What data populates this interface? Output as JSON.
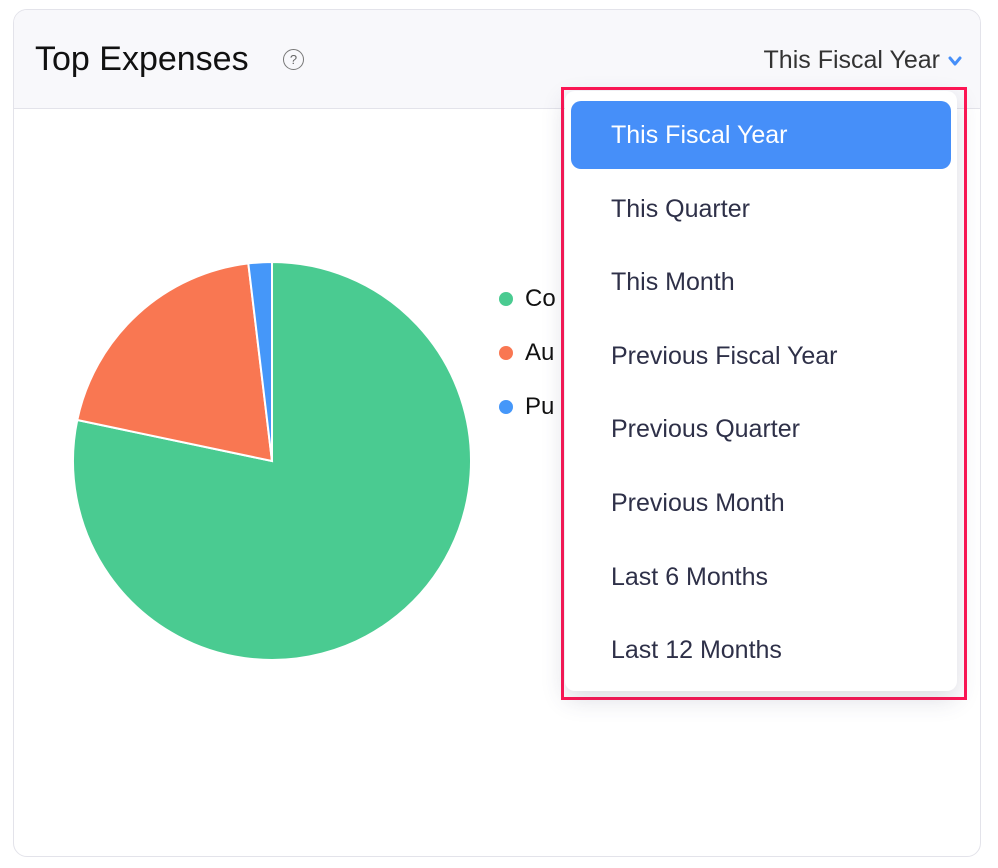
{
  "widget": {
    "title": "Top Expenses",
    "help_icon": "?",
    "period_selected": "This Fiscal Year"
  },
  "dropdown": {
    "options": [
      "This Fiscal Year",
      "This Quarter",
      "This Month",
      "Previous Fiscal Year",
      "Previous Quarter",
      "Previous Month",
      "Last 6 Months",
      "Last 12 Months"
    ],
    "selected_index": 0,
    "accent": "#468ff9",
    "highlight_border": "#ff1654"
  },
  "chart_data": {
    "type": "pie",
    "legend_position": "right",
    "series": [
      {
        "name": "Co",
        "value": 78.3,
        "color": "#4acb91"
      },
      {
        "name": "Au",
        "value": 19.8,
        "color": "#f97752"
      },
      {
        "name": "Pu",
        "value": 1.9,
        "color": "#4597f9"
      }
    ]
  }
}
